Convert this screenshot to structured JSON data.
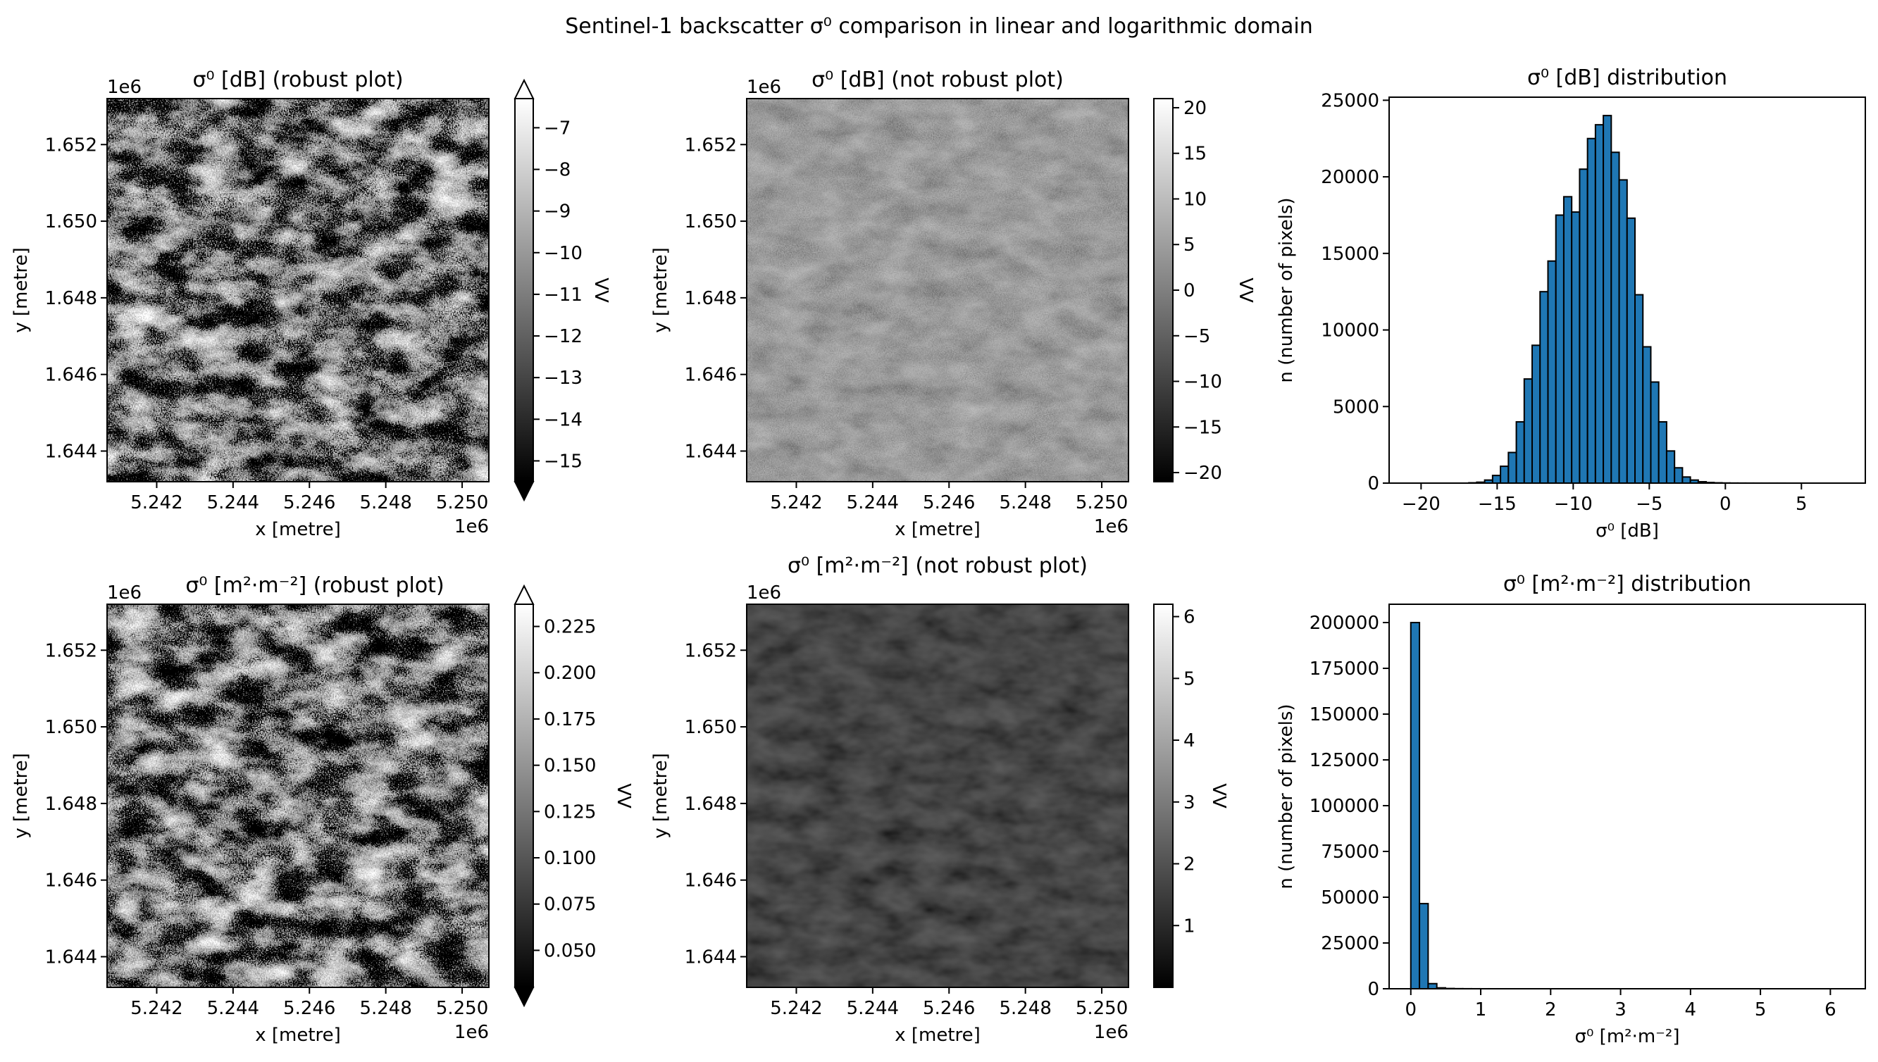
{
  "figure": {
    "suptitle": "Sentinel-1 backscatter σ⁰ comparison in linear and logarithmic domain"
  },
  "chart_data": [
    {
      "type": "heatmap",
      "title": "σ⁰ [dB] (robust plot)",
      "xlabel": "x [metre]",
      "ylabel": "y [metre]",
      "x_offset_label": "1e6",
      "y_offset_label": "1e6",
      "xticks": [
        "5.242",
        "5.244",
        "5.246",
        "5.248",
        "5.250"
      ],
      "xtick_values": [
        5.242,
        5.244,
        5.246,
        5.248,
        5.25
      ],
      "yticks": [
        "1.644",
        "1.646",
        "1.648",
        "1.650",
        "1.652"
      ],
      "ytick_values": [
        1.644,
        1.646,
        1.648,
        1.65,
        1.652
      ],
      "xlim": [
        5.2407,
        5.2507
      ],
      "ylim": [
        1.6432,
        1.6532
      ],
      "colorbar": {
        "label": "VV",
        "ticks": [
          "−7",
          "−8",
          "−9",
          "−10",
          "−11",
          "−12",
          "−13",
          "−14",
          "−15"
        ],
        "tick_values": [
          -7,
          -8,
          -9,
          -10,
          -11,
          -12,
          -13,
          -14,
          -15
        ],
        "range": [
          -15.5,
          -6.3
        ],
        "extend": "both"
      },
      "texture": "robust"
    },
    {
      "type": "heatmap",
      "title": "σ⁰ [dB] (not robust plot)",
      "xlabel": "x [metre]",
      "ylabel": "y [metre]",
      "x_offset_label": "1e6",
      "y_offset_label": "1e6",
      "xticks": [
        "5.242",
        "5.244",
        "5.246",
        "5.248",
        "5.250"
      ],
      "xtick_values": [
        5.242,
        5.244,
        5.246,
        5.248,
        5.25
      ],
      "yticks": [
        "1.644",
        "1.646",
        "1.648",
        "1.650",
        "1.652"
      ],
      "ytick_values": [
        1.644,
        1.646,
        1.648,
        1.65,
        1.652
      ],
      "xlim": [
        5.2407,
        5.2507
      ],
      "ylim": [
        1.6432,
        1.6532
      ],
      "colorbar": {
        "label": "VV",
        "ticks": [
          "20",
          "15",
          "10",
          "5",
          "0",
          "−5",
          "−10",
          "−15",
          "−20"
        ],
        "tick_values": [
          20,
          15,
          10,
          5,
          0,
          -5,
          -10,
          -15,
          -20
        ],
        "range": [
          -21,
          21
        ],
        "extend": "neither"
      },
      "texture": "dim"
    },
    {
      "type": "bar",
      "title": "σ⁰ [dB] distribution",
      "xlabel": "σ⁰ [dB]",
      "ylabel": "n (number of pixels)",
      "xticks": [
        "−20",
        "−15",
        "−10",
        "−5",
        "0",
        "5"
      ],
      "xtick_values": [
        -20,
        -15,
        -10,
        -5,
        0,
        5
      ],
      "yticks": [
        "0",
        "5000",
        "10000",
        "15000",
        "20000",
        "25000"
      ],
      "ytick_values": [
        0,
        5000,
        10000,
        15000,
        20000,
        25000
      ],
      "xlim": [
        -22.1,
        9.2
      ],
      "ylim": [
        0,
        25200
      ],
      "bin_start": -20.5,
      "bin_width": 0.52,
      "values": [
        0,
        0,
        0,
        0,
        0,
        0,
        0,
        20,
        60,
        200,
        500,
        1100,
        2000,
        4000,
        6800,
        9000,
        12500,
        14500,
        17500,
        18700,
        17700,
        20500,
        22500,
        23400,
        24000,
        21600,
        19800,
        17300,
        12300,
        8900,
        6600,
        4000,
        2100,
        1000,
        400,
        200,
        90,
        40,
        20,
        10,
        5,
        3,
        2,
        1,
        1,
        1,
        1,
        0,
        0,
        0,
        0,
        0,
        0,
        0,
        0,
        0,
        0,
        0
      ]
    },
    {
      "type": "heatmap",
      "title": "σ⁰ [m²·m⁻²] (robust plot)",
      "xlabel": "x [metre]",
      "ylabel": "y [metre]",
      "x_offset_label": "1e6",
      "y_offset_label": "1e6",
      "xticks": [
        "5.242",
        "5.244",
        "5.246",
        "5.248",
        "5.250"
      ],
      "xtick_values": [
        5.242,
        5.244,
        5.246,
        5.248,
        5.25
      ],
      "yticks": [
        "1.644",
        "1.646",
        "1.648",
        "1.650",
        "1.652"
      ],
      "ytick_values": [
        1.644,
        1.646,
        1.648,
        1.65,
        1.652
      ],
      "xlim": [
        5.2407,
        5.2507
      ],
      "ylim": [
        1.6432,
        1.6532
      ],
      "colorbar": {
        "label": "VV",
        "ticks": [
          "0.225",
          "0.200",
          "0.175",
          "0.150",
          "0.125",
          "0.100",
          "0.075",
          "0.050"
        ],
        "tick_values": [
          0.225,
          0.2,
          0.175,
          0.15,
          0.125,
          0.1,
          0.075,
          0.05
        ],
        "range": [
          0.03,
          0.237
        ],
        "extend": "both"
      },
      "texture": "robust"
    },
    {
      "type": "heatmap",
      "title": "σ⁰ [m²·m⁻²] (not robust plot)",
      "xlabel": "x [metre]",
      "ylabel": "y [metre]",
      "x_offset_label": "1e6",
      "y_offset_label": "1e6",
      "xticks": [
        "5.242",
        "5.244",
        "5.246",
        "5.248",
        "5.250"
      ],
      "xtick_values": [
        5.242,
        5.244,
        5.246,
        5.248,
        5.25
      ],
      "yticks": [
        "1.644",
        "1.646",
        "1.648",
        "1.650",
        "1.652"
      ],
      "ytick_values": [
        1.644,
        1.646,
        1.648,
        1.65,
        1.652
      ],
      "xlim": [
        5.2407,
        5.2507
      ],
      "ylim": [
        1.6432,
        1.6532
      ],
      "colorbar": {
        "label": "VV",
        "ticks": [
          "6",
          "5",
          "4",
          "3",
          "2",
          "1"
        ],
        "tick_values": [
          6,
          5,
          4,
          3,
          2,
          1
        ],
        "range": [
          0,
          6.2
        ],
        "extend": "neither"
      },
      "texture": "dark"
    },
    {
      "type": "bar",
      "title": "σ⁰ [m²·m⁻²] distribution",
      "xlabel": "σ⁰ [m²·m⁻²]",
      "ylabel": "n (number of pixels)",
      "xticks": [
        "0",
        "1",
        "2",
        "3",
        "4",
        "5",
        "6"
      ],
      "xtick_values": [
        0,
        1,
        2,
        3,
        4,
        5,
        6
      ],
      "yticks": [
        "0",
        "25000",
        "50000",
        "75000",
        "100000",
        "125000",
        "150000",
        "175000",
        "200000"
      ],
      "ytick_values": [
        0,
        25000,
        50000,
        75000,
        100000,
        125000,
        150000,
        175000,
        200000
      ],
      "xlim": [
        -0.31,
        6.5
      ],
      "ylim": [
        0,
        210000
      ],
      "bin_start": 0,
      "bin_width": 0.124,
      "values": [
        200000,
        46500,
        2800,
        500,
        150,
        60,
        30,
        15,
        8,
        5,
        3,
        2,
        1,
        1,
        1,
        1,
        1,
        0,
        0,
        0,
        0,
        0,
        0,
        0,
        0,
        0,
        0,
        0,
        0,
        0,
        0,
        0,
        0,
        0,
        0,
        0,
        0,
        0,
        0,
        0,
        0,
        0,
        0,
        0,
        0,
        0,
        0,
        0,
        0,
        0
      ]
    }
  ]
}
